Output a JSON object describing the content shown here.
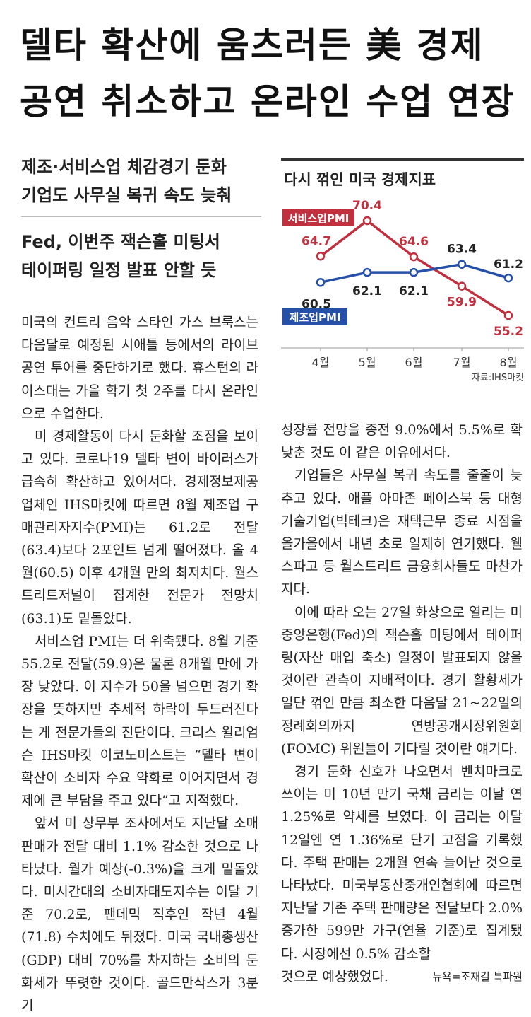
{
  "headline": {
    "line1": "델타 확산에 움츠러든 美 경제",
    "line2": "공연 취소하고 온라인 수업 연장"
  },
  "subheads": [
    {
      "line1": "제조·서비스업 체감경기 둔화",
      "line2": "기업도 사무실 복귀 속도 늦춰"
    },
    {
      "line1": "Fed, 이번주 잭슨홀 미팅서",
      "line2": "테이퍼링 일정 발표 안할 듯"
    }
  ],
  "chart_data": {
    "type": "line",
    "title": "다시 꺾인 미국 경제지표",
    "categories": [
      "4월",
      "5월",
      "6월",
      "7월",
      "8월"
    ],
    "series": [
      {
        "name": "서비스업PMI",
        "values": [
          64.7,
          70.4,
          64.6,
          59.9,
          55.2
        ],
        "color": "#c0303f",
        "labels": [
          "64.7",
          "70.4",
          "64.6",
          "59.9",
          "55.2"
        ]
      },
      {
        "name": "제조업PMI",
        "values": [
          60.5,
          62.1,
          62.1,
          63.4,
          61.2
        ],
        "color": "#2650a8",
        "labels": [
          "60.5",
          "62.1",
          "62.1",
          "63.4",
          "61.2"
        ]
      }
    ],
    "source": "자료:IHS마킷",
    "grid": false
  },
  "body_left": [
    "미국의 컨트리 음악 스타인 가스 브룩스는 다음달로 예정된 시애틀 등에서의 라이브 공연 투어를 중단하기로 했다. 휴스턴의 라이스대는 가을 학기 첫 2주를 다시 온라인으로 수업한다.",
    "미 경제활동이 다시 둔화할 조짐을 보이고 있다. 코로나19 델타 변이 바이러스가 급속히 확산하고 있어서다. 경제정보제공업체인 IHS마킷에 따르면 8월 제조업 구매관리자지수(PMI)는 61.2로 전달(63.4)보다 2포인트 넘게 떨어졌다. 올 4월(60.5) 이후 4개월 만의 최저치다. 월스트리트저널이 집계한 전문가 전망치(63.1)도 밑돌았다.",
    "서비스업 PMI는 더 위축됐다. 8월 기준 55.2로 전달(59.9)은 물론 8개월 만에 가장 낮았다. 이 지수가 50을 넘으면 경기 확장을 뜻하지만 추세적 하락이 두드러진다는 게 전문가들의 진단이다. 크리스 윌리엄슨 IHS마킷 이코노미스트는 “델타 변이 확산이 소비자 수요 약화로 이어지면서 경제에 큰 부담을 주고 있다”고 지적했다.",
    "앞서 미 상무부 조사에서도 지난달 소매 판매가 전달 대비 1.1% 감소한 것으로 나타났다. 월가 예상(-0.3%)을 크게 밑돌았다. 미시간대의 소비자태도지수는 이달 기준 70.2로, 팬데믹 직후인 작년 4월(71.8) 수치에도 뒤졌다. 미국 국내총생산(GDP) 대비 70%를 차지하는 소비의 둔화세가 뚜렷한 것이다. 골드만삭스가 3분기"
  ],
  "body_right": [
    "성장률 전망을 종전 9.0%에서 5.5%로 확 낮춘 것도 이 같은 이유에서다.",
    "기업들은 사무실 복귀 속도를 줄줄이 늦추고 있다. 애플 아마존 페이스북 등 대형 기술기업(빅테크)은 재택근무 종료 시점을 올가을에서 내년 초로 일제히 연기했다. 웰스파고 등 월스트리트 금융회사들도 마찬가지다.",
    "이에 따라 오는 27일 화상으로 열리는 미 중앙은행(Fed)의 잭슨홀 미팅에서 테이퍼링(자산 매입 축소) 일정이 발표되지 않을 것이란 관측이 지배적이다. 경기 활황세가 일단 꺾인 만큼 최소한 다음달 21~22일의 정례회의까지 연방공개시장위원회(FOMC) 위원들이 기다릴 것이란 얘기다.",
    "경기 둔화 신호가 나오면서 벤치마크로 쓰이는 미 10년 만기 국채 금리는 이날 연 1.25%로 약세를 보였다. 이 금리는 이달 12일엔 연 1.36%로 단기 고점을 기록했다. 주택 판매는 2개월 연속 늘어난 것으로 나타났다. 미국부동산중개인협회에 따르면 지난달 기존 주택 판매량은 전달보다 2.0% 증가한 599만 가구(연율 기준)로 집계됐다. 시장에선 0.5% 감소할"
  ],
  "body_right_last": "것으로 예상했었다.",
  "byline": "뉴욕=조재길 특파원"
}
